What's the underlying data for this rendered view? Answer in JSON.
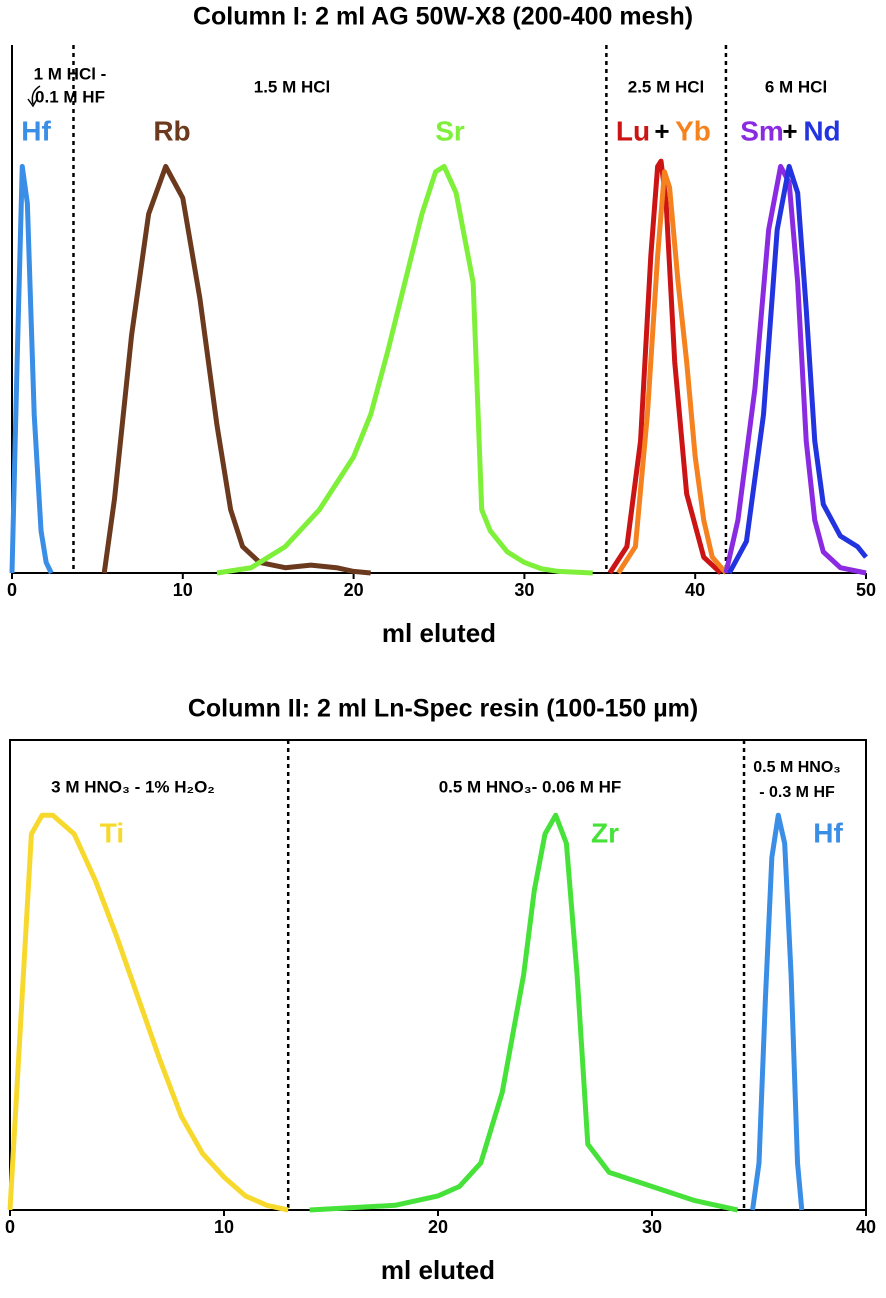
{
  "chart_data": [
    {
      "type": "line",
      "title": "Column I: 2 ml AG 50W-X8 (200-400 mesh)",
      "x_label": "ml eluted",
      "xlim": [
        0,
        50
      ],
      "xticks": [
        0,
        10,
        20,
        30,
        40,
        50
      ],
      "ylim": [
        0,
        100
      ],
      "dividers": [
        3.6,
        34.8,
        41.8
      ],
      "annotations": [
        "1 M HCl -",
        "0.1 M HF",
        "1.5 M HCl",
        "2.5 M HCl",
        "6 M HCl",
        "+",
        "+"
      ],
      "series": [
        {
          "name": "Hf",
          "color": "#3a8ee6",
          "x": [
            0,
            0.3,
            0.6,
            0.9,
            1.3,
            1.7,
            2,
            2.3
          ],
          "values": [
            0,
            40,
            77,
            70,
            30,
            8,
            2,
            0
          ]
        },
        {
          "name": "Rb",
          "color": "#6b3a1e",
          "x": [
            5.4,
            6,
            7,
            8,
            9,
            10,
            11,
            12,
            12.8,
            13.5,
            14.5,
            16,
            17.5,
            19,
            20,
            21
          ],
          "values": [
            0,
            14,
            45,
            68,
            77,
            71,
            52,
            28,
            12,
            5,
            2,
            1,
            1.5,
            1,
            0.3,
            0
          ]
        },
        {
          "name": "Sr",
          "color": "#7ef03a",
          "x": [
            12,
            14,
            16,
            18,
            20,
            21,
            22,
            23,
            24,
            24.8,
            25.3,
            26,
            27,
            27.5,
            28,
            29,
            30,
            31,
            32,
            34
          ],
          "values": [
            0,
            1,
            5,
            12,
            22,
            30,
            42,
            55,
            68,
            76,
            77,
            72,
            55,
            12,
            8,
            4,
            2,
            0.8,
            0.3,
            0
          ]
        },
        {
          "name": "Lu",
          "color": "#cc1414",
          "x": [
            35,
            36,
            36.8,
            37.4,
            37.8,
            38,
            38.3,
            38.8,
            39.5,
            40.5,
            41.5
          ],
          "values": [
            0,
            5,
            25,
            60,
            77,
            78,
            70,
            40,
            15,
            3,
            0
          ]
        },
        {
          "name": "Yb",
          "color": "#f5821f",
          "x": [
            35.5,
            36.5,
            37.2,
            37.8,
            38.2,
            38.5,
            39,
            39.5,
            40,
            40.5,
            41,
            41.8
          ],
          "values": [
            0,
            5,
            30,
            60,
            76,
            73,
            55,
            40,
            22,
            10,
            3,
            0
          ]
        },
        {
          "name": "Sm",
          "color": "#8a2be2",
          "x": [
            41.8,
            42.5,
            43.5,
            44.3,
            45,
            45.5,
            46,
            46.5,
            47,
            47.5,
            48.5,
            50
          ],
          "values": [
            0,
            10,
            35,
            65,
            77,
            74,
            55,
            25,
            10,
            4,
            1,
            0
          ]
        },
        {
          "name": "Nd",
          "color": "#2233e0",
          "x": [
            42,
            43,
            44,
            44.8,
            45.5,
            46,
            46.5,
            47,
            47.5,
            48.5,
            49.5,
            50
          ],
          "values": [
            0,
            6,
            30,
            65,
            77,
            72,
            50,
            25,
            13,
            7,
            5,
            3
          ]
        }
      ]
    },
    {
      "type": "line",
      "title": "Column II: 2 ml Ln-Spec resin (100-150 µm)",
      "x_label": "ml eluted",
      "xlim": [
        0,
        40
      ],
      "xticks": [
        0,
        10,
        20,
        30,
        40
      ],
      "ylim": [
        0,
        100
      ],
      "dividers": [
        13,
        34.3
      ],
      "annotations": [
        "3 M HNO₃ - 1% H₂O₂",
        "0.5 M HNO₃- 0.06 M HF",
        "0.5 M HNO₃",
        "- 0.3 M HF"
      ],
      "series": [
        {
          "name": "Ti",
          "color": "#f7d92e",
          "x": [
            0,
            0.5,
            1,
            1.5,
            2,
            3,
            4,
            5,
            6,
            7,
            8,
            9,
            10,
            11,
            12,
            13
          ],
          "values": [
            0,
            40,
            80,
            84,
            84,
            80,
            70,
            58,
            45,
            32,
            20,
            12,
            7,
            3,
            1,
            0
          ]
        },
        {
          "name": "Zr",
          "color": "#46e23a",
          "x": [
            14,
            16,
            18,
            20,
            21,
            22,
            23,
            24,
            24.5,
            25,
            25.5,
            26,
            26.5,
            27,
            28,
            30,
            32,
            33,
            34
          ],
          "values": [
            0,
            0.5,
            1,
            3,
            5,
            10,
            25,
            50,
            68,
            80,
            84,
            78,
            50,
            14,
            8,
            5,
            2,
            1,
            0
          ]
        },
        {
          "name": "Hf",
          "color": "#3a8ee6",
          "x": [
            34.7,
            35,
            35.3,
            35.6,
            35.9,
            36.2,
            36.5,
            36.8,
            37
          ],
          "values": [
            0,
            10,
            45,
            75,
            84,
            78,
            50,
            10,
            0
          ]
        }
      ]
    }
  ]
}
